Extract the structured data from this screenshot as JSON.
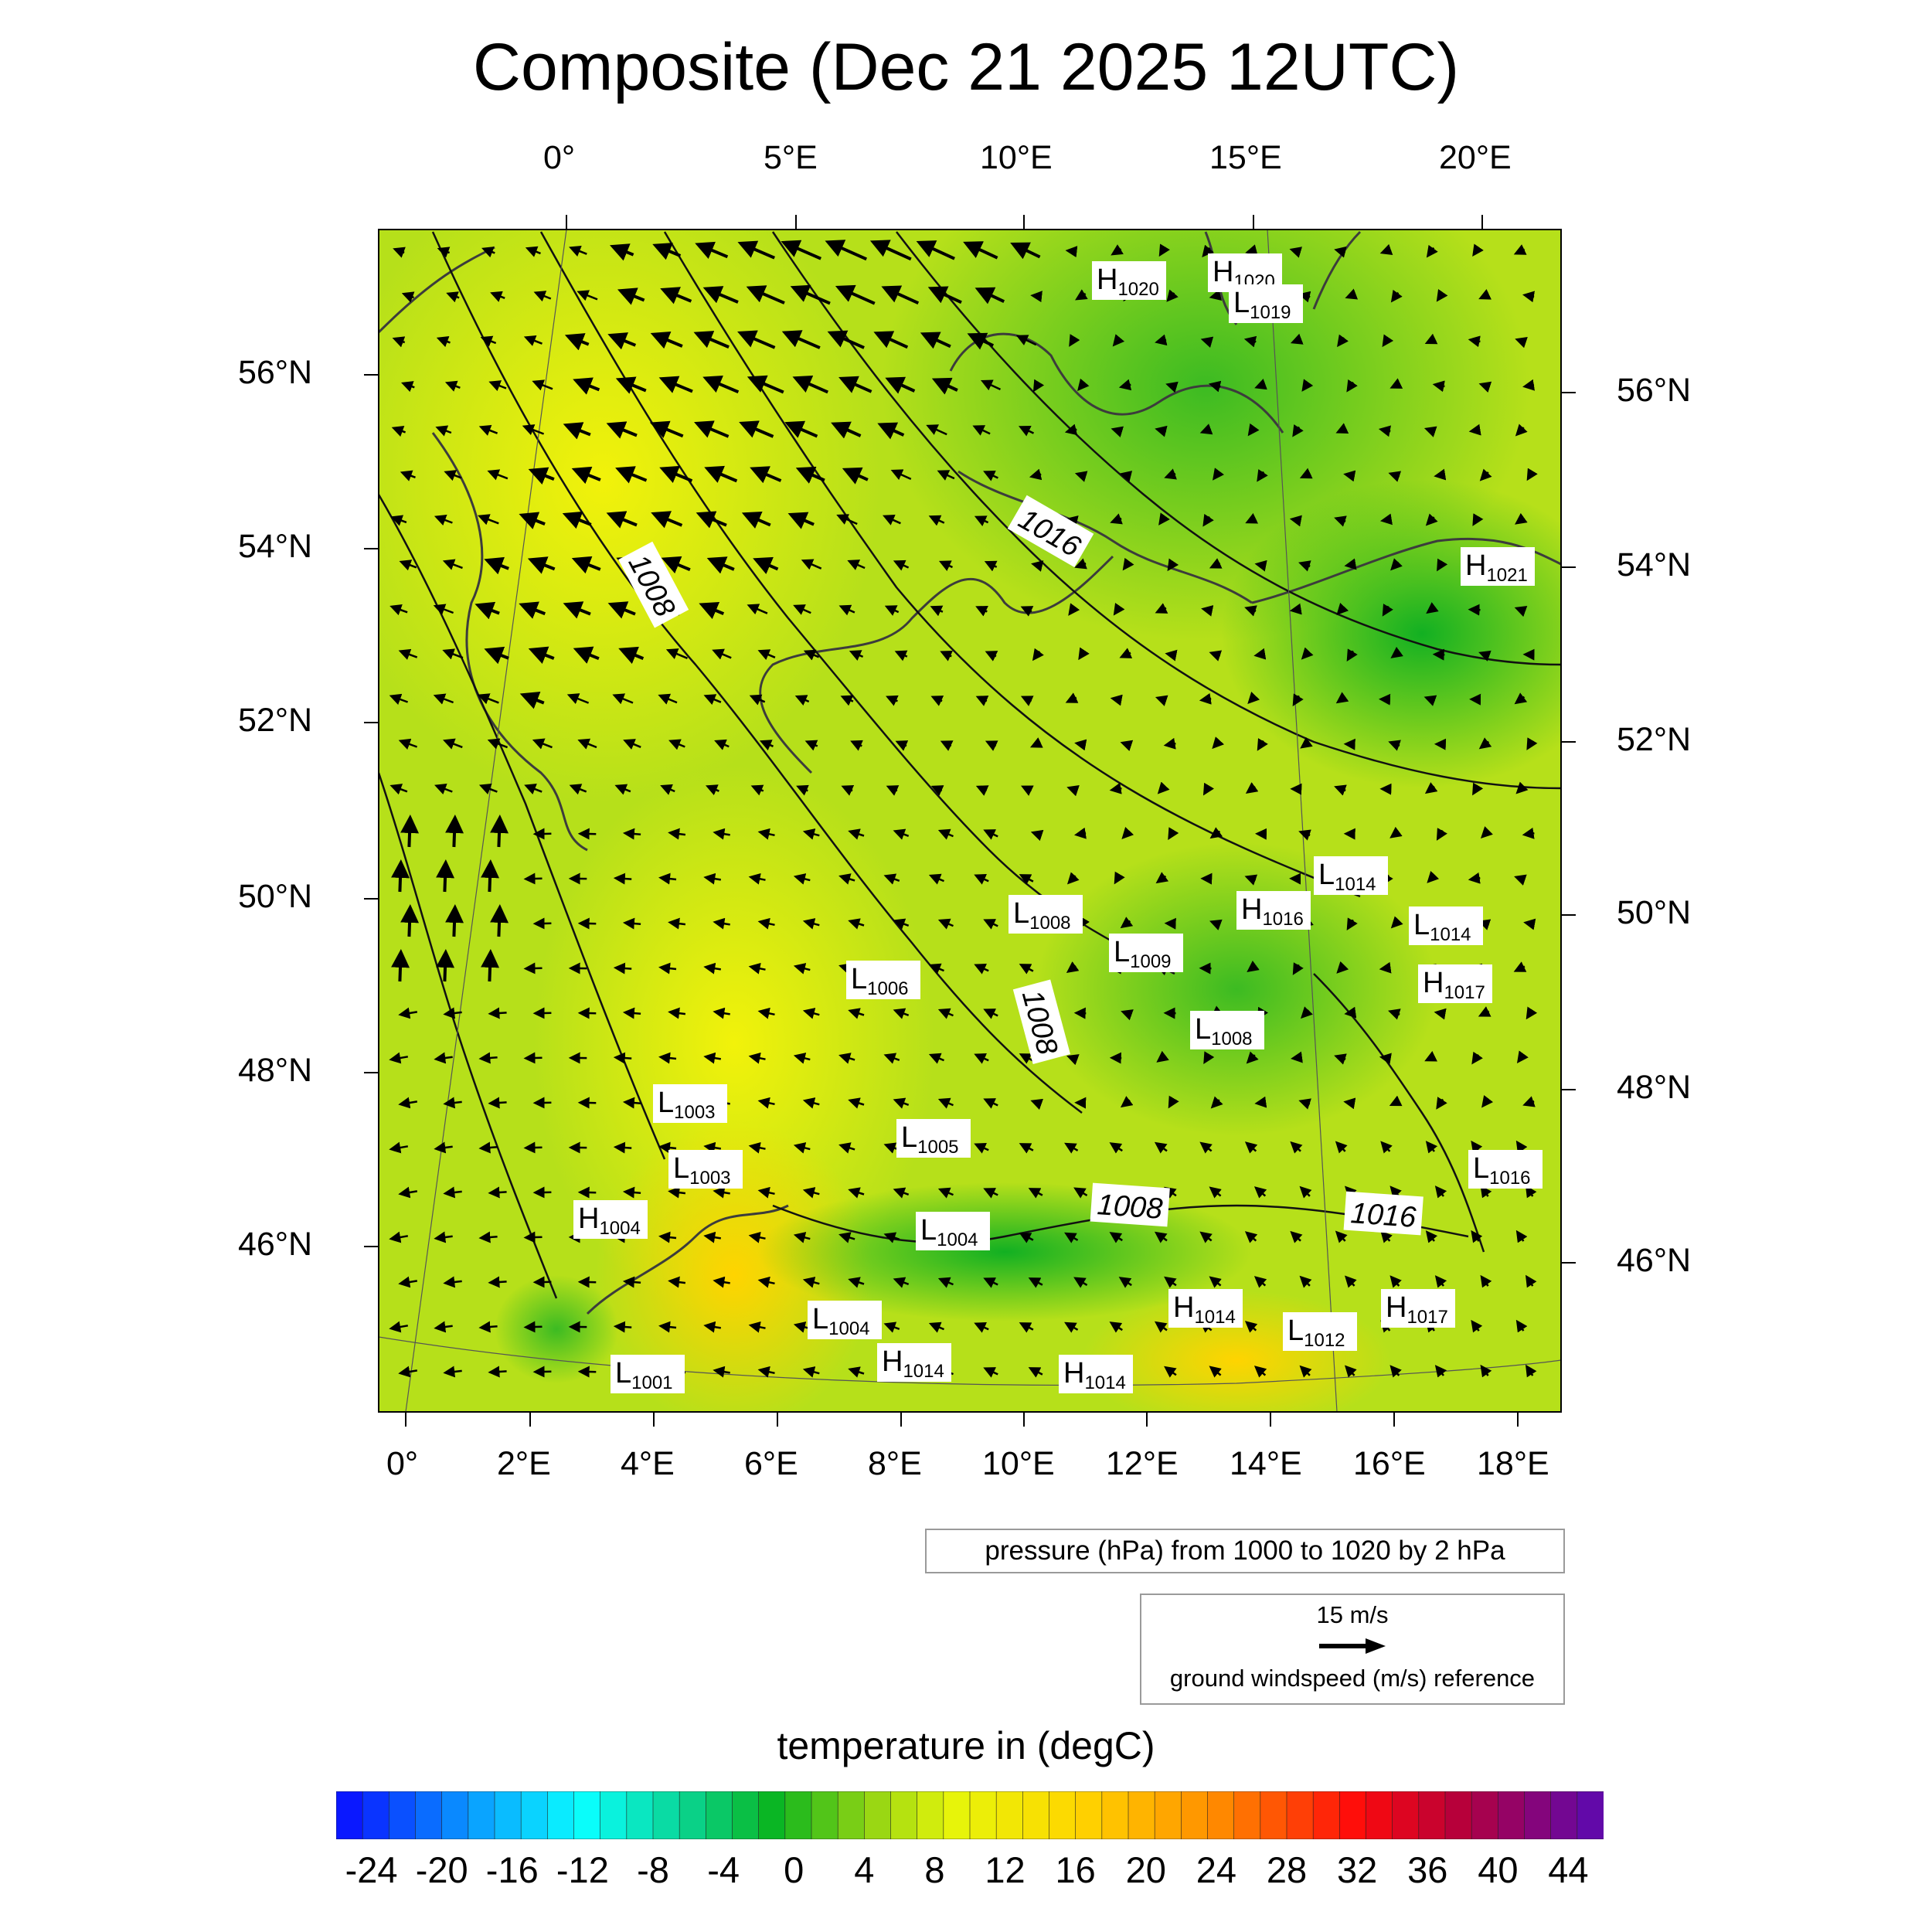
{
  "title": "Composite (Dec 21 2025 12UTC)",
  "top_lon_labels": [
    "0°",
    "5°E",
    "10°E",
    "15°E",
    "20°E"
  ],
  "bottom_lon_labels": [
    "0°",
    "2°E",
    "4°E",
    "6°E",
    "8°E",
    "10°E",
    "12°E",
    "14°E",
    "16°E",
    "18°E"
  ],
  "left_lat_labels": [
    "56°N",
    "54°N",
    "52°N",
    "50°N",
    "48°N",
    "46°N"
  ],
  "right_lat_labels": [
    "56°N",
    "54°N",
    "52°N",
    "50°N",
    "48°N",
    "46°N"
  ],
  "isobar_labels": [
    "1008",
    "1016",
    "1008",
    "1008",
    "1016"
  ],
  "pressure_centers": [
    {
      "type": "H",
      "value": "1020"
    },
    {
      "type": "H",
      "value": "1020"
    },
    {
      "type": "L",
      "value": "1019"
    },
    {
      "type": "H",
      "value": "1021"
    },
    {
      "type": "L",
      "value": "1014"
    },
    {
      "type": "H",
      "value": "1016"
    },
    {
      "type": "L",
      "value": "1014"
    },
    {
      "type": "L",
      "value": "1008"
    },
    {
      "type": "L",
      "value": "1009"
    },
    {
      "type": "L",
      "value": "1006"
    },
    {
      "type": "H",
      "value": "1017"
    },
    {
      "type": "L",
      "value": "1008"
    },
    {
      "type": "L",
      "value": "1003"
    },
    {
      "type": "L",
      "value": "1005"
    },
    {
      "type": "L",
      "value": "1003"
    },
    {
      "type": "L",
      "value": "1016"
    },
    {
      "type": "H",
      "value": "1004"
    },
    {
      "type": "L",
      "value": "1004"
    },
    {
      "type": "L",
      "value": "1004"
    },
    {
      "type": "H",
      "value": "1014"
    },
    {
      "type": "L",
      "value": "1012"
    },
    {
      "type": "H",
      "value": "1017"
    },
    {
      "type": "L",
      "value": "1001"
    },
    {
      "type": "H",
      "value": "1014"
    },
    {
      "type": "H",
      "value": "1014"
    }
  ],
  "pressure_legend": "pressure (hPa) from 1000 to 1020 by 2 hPa",
  "wind_reference": {
    "value": "15 m/s",
    "label": "ground windspeed (m/s) reference"
  },
  "colorbar": {
    "title": "temperature in (degC)",
    "min": -26,
    "max": 46,
    "step": 1.5,
    "tick_labels": [
      "-24",
      "-20",
      "-16",
      "-12",
      "-8",
      "-4",
      "0",
      "4",
      "8",
      "12",
      "16",
      "20",
      "24",
      "28",
      "32",
      "36",
      "40",
      "44"
    ],
    "stops": [
      {
        "v": -26,
        "c": "#0a0aff"
      },
      {
        "v": -18,
        "c": "#0aa0ff"
      },
      {
        "v": -12,
        "c": "#0affff"
      },
      {
        "v": -6,
        "c": "#0ad28c"
      },
      {
        "v": -1,
        "c": "#0ab41e"
      },
      {
        "v": 4,
        "c": "#8cd214"
      },
      {
        "v": 9,
        "c": "#e6f50a"
      },
      {
        "v": 16,
        "c": "#ffd700"
      },
      {
        "v": 24,
        "c": "#ff8c00"
      },
      {
        "v": 32,
        "c": "#ff0a0a"
      },
      {
        "v": 38,
        "c": "#b4003c"
      },
      {
        "v": 46,
        "c": "#5a0ab4"
      }
    ]
  }
}
